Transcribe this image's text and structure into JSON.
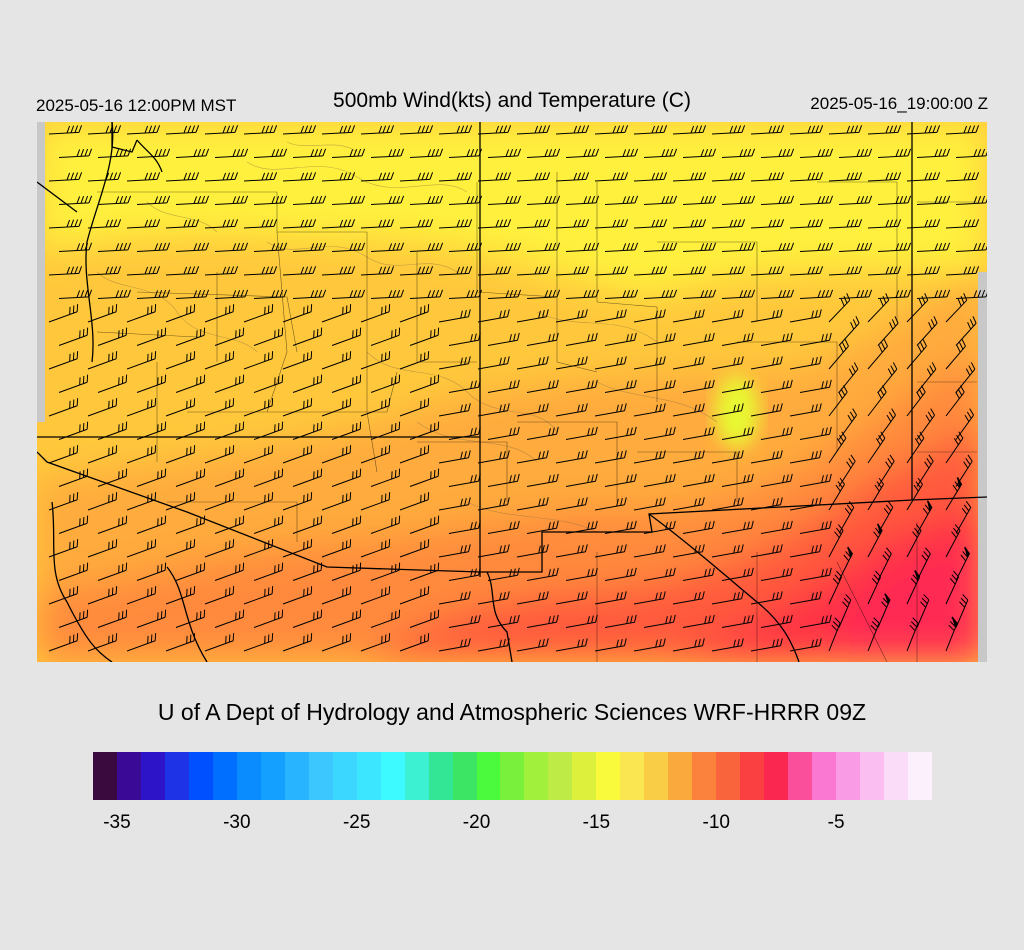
{
  "header": {
    "valid_local": "2025-05-16 12:00PM MST",
    "title": "500mb Wind(kts) and Temperature (C)",
    "valid_utc": "2025-05-16_19:00:00 Z"
  },
  "footer": {
    "credit": "U of A Dept of Hydrology and Atmospheric Sciences WRF-HRRR 09Z"
  },
  "legend": {
    "colors": [
      "#3a0a3e",
      "#3a0a96",
      "#2e14c8",
      "#1e32e6",
      "#0050ff",
      "#006eff",
      "#0a8cff",
      "#14a0ff",
      "#28b4ff",
      "#3cc8ff",
      "#3cd7ff",
      "#3ce6ff",
      "#3cfaff",
      "#3cf0d2",
      "#32e696",
      "#3ce664",
      "#4bfa3c",
      "#78f03c",
      "#a0f03c",
      "#beeb46",
      "#dcf03c",
      "#fafa3c",
      "#fae650",
      "#facd46",
      "#faaa3c",
      "#fa823c",
      "#fa643c",
      "#fa4040",
      "#fa2850",
      "#fa509b",
      "#fa78d2",
      "#fa9be6",
      "#fabef0",
      "#fadcf8",
      "#fcf0fc"
    ],
    "ticks": [
      {
        "label": "-35",
        "value": -35
      },
      {
        "label": "-30",
        "value": -30
      },
      {
        "label": "-25",
        "value": -25
      },
      {
        "label": "-20",
        "value": -20
      },
      {
        "label": "-15",
        "value": -15
      },
      {
        "label": "-10",
        "value": -10
      },
      {
        "label": "-5",
        "value": -5
      }
    ],
    "min": -36,
    "max": -1
  },
  "map": {
    "field_colors": {
      "yellow": "#fff03c",
      "light_orange": "#ffc83c",
      "mid_orange": "#ffab3c",
      "dark_orange": "#ff8a3c",
      "red_orange": "#ff5a3c",
      "red": "#ff3344",
      "hot": "#ff2a52",
      "lime": "#e8f832",
      "edge_gray": "#c8c8c8"
    }
  }
}
